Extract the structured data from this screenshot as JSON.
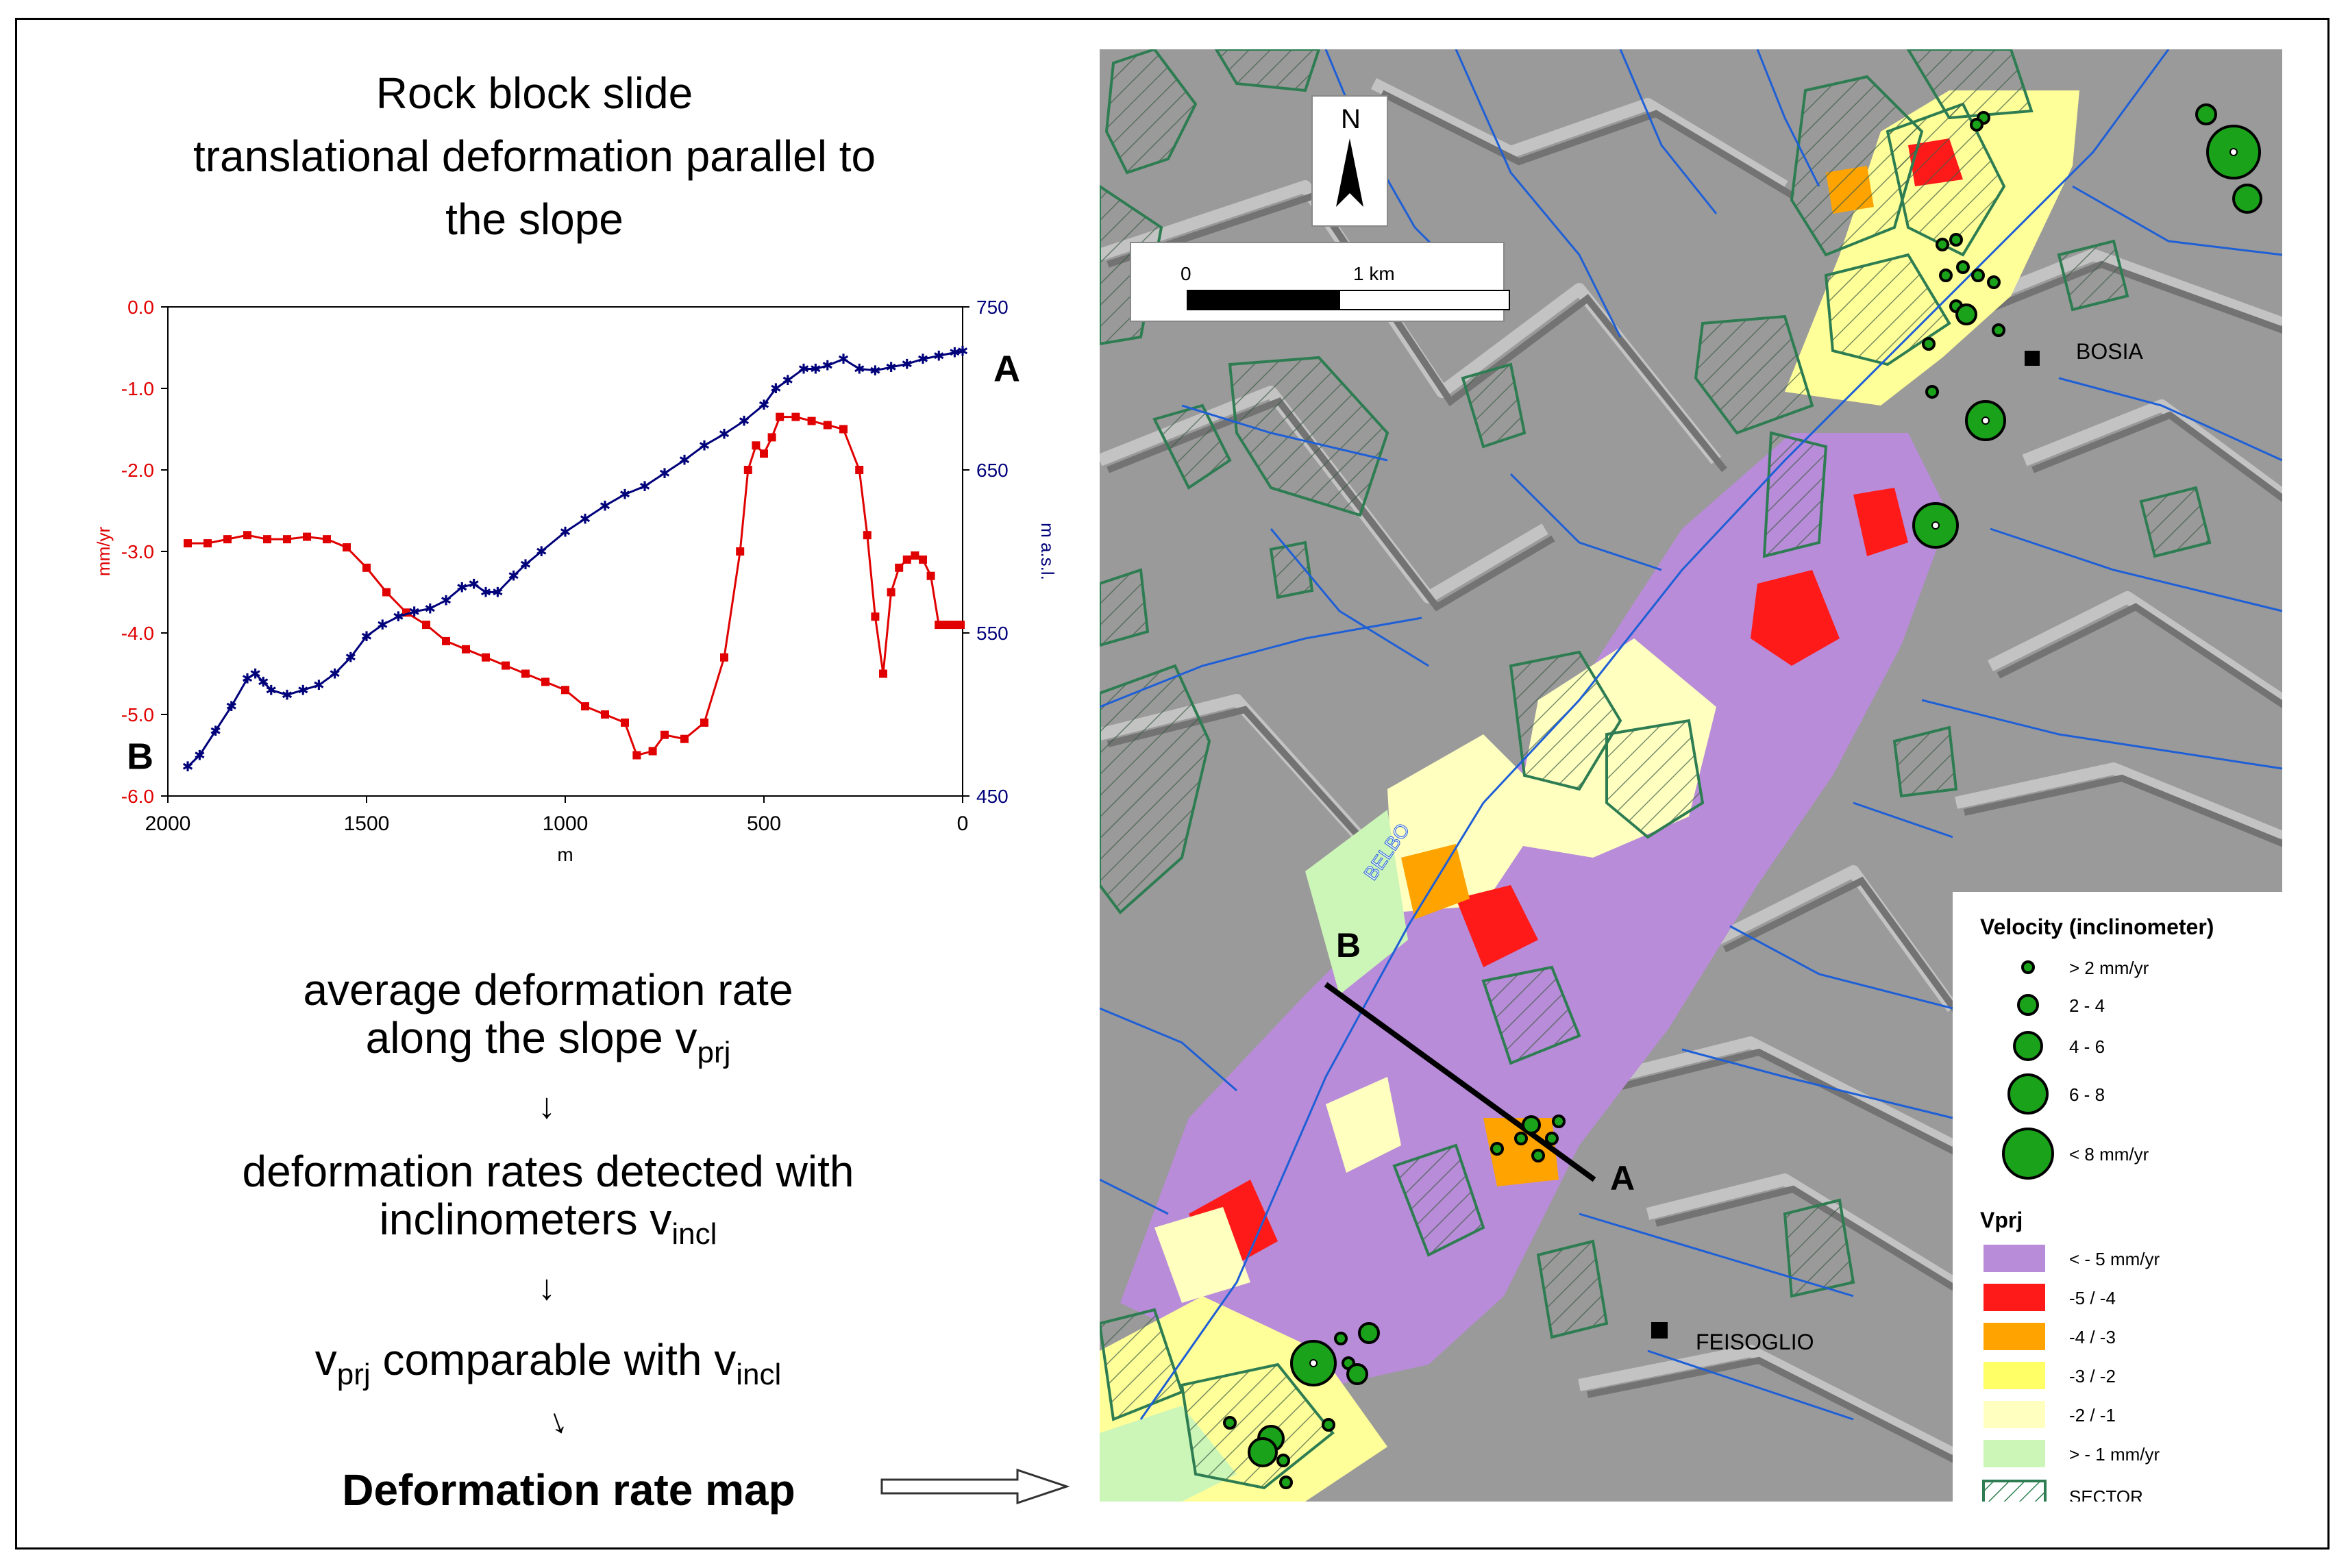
{
  "title_lines": [
    "Rock block slide",
    "translational deformation parallel to",
    "the slope"
  ],
  "chart_data": {
    "type": "line",
    "xlabel": "m",
    "ylabel_left": "mm/yr",
    "ylabel_right": "m a.s.l.",
    "x_ticks": [
      "2000",
      "1500",
      "1000",
      "500",
      "0"
    ],
    "y_left_ticks": [
      "0.0",
      "-1.0",
      "-2.0",
      "-3.0",
      "-4.0",
      "-5.0",
      "-6.0"
    ],
    "y_right_ticks": [
      "750",
      "650",
      "550",
      "450"
    ],
    "xlim": [
      2000,
      0
    ],
    "ylim_left": [
      -6.0,
      0.0
    ],
    "ylim_right": [
      450,
      750
    ],
    "end_label_left": "B",
    "end_label_right": "A",
    "colors": {
      "deformation": "#e00000",
      "elevation": "#00007a"
    },
    "series": [
      {
        "axis": "left",
        "x": [
          1950,
          1900,
          1850,
          1800,
          1750,
          1700,
          1650,
          1600,
          1550,
          1500,
          1450,
          1400,
          1350,
          1300,
          1250,
          1200,
          1150,
          1100,
          1050,
          1000,
          950,
          900,
          850,
          820,
          780,
          750,
          700,
          650,
          600,
          560,
          540,
          520,
          500,
          480,
          460,
          420,
          380,
          340,
          300,
          260,
          240,
          220,
          200,
          180,
          160,
          140,
          120,
          100,
          80,
          60,
          40,
          20,
          5
        ],
        "values": [
          -2.9,
          -2.9,
          -2.85,
          -2.8,
          -2.85,
          -2.85,
          -2.82,
          -2.85,
          -2.95,
          -3.2,
          -3.5,
          -3.75,
          -3.9,
          -4.1,
          -4.2,
          -4.3,
          -4.4,
          -4.5,
          -4.6,
          -4.7,
          -4.9,
          -5.0,
          -5.1,
          -5.5,
          -5.45,
          -5.25,
          -5.3,
          -5.1,
          -4.3,
          -3.0,
          -2.0,
          -1.7,
          -1.8,
          -1.6,
          -1.35,
          -1.35,
          -1.4,
          -1.45,
          -1.5,
          -2.0,
          -2.8,
          -3.8,
          -4.5,
          -3.5,
          -3.2,
          -3.1,
          -3.05,
          -3.1,
          -3.3,
          -3.9,
          -3.9,
          -3.9,
          -3.9
        ]
      },
      {
        "axis": "right",
        "x": [
          1950,
          1920,
          1880,
          1840,
          1800,
          1780,
          1760,
          1740,
          1700,
          1660,
          1620,
          1580,
          1540,
          1500,
          1460,
          1420,
          1380,
          1340,
          1300,
          1260,
          1230,
          1200,
          1170,
          1130,
          1100,
          1060,
          1000,
          950,
          900,
          850,
          800,
          750,
          700,
          650,
          600,
          550,
          500,
          470,
          440,
          400,
          370,
          340,
          300,
          260,
          220,
          180,
          140,
          100,
          60,
          20,
          0
        ],
        "values": [
          468,
          475,
          490,
          505,
          522,
          525,
          520,
          515,
          512,
          515,
          518,
          525,
          535,
          548,
          555,
          560,
          563,
          565,
          570,
          578,
          580,
          575,
          575,
          585,
          592,
          600,
          612,
          620,
          628,
          635,
          640,
          648,
          656,
          665,
          672,
          680,
          690,
          700,
          705,
          712,
          712,
          714,
          718,
          712,
          711,
          713,
          715,
          718,
          720,
          722,
          723
        ]
      }
    ]
  },
  "flow_steps": [
    {
      "line1": "average deformation rate",
      "line2_main": "along the slope v",
      "line2_sub": "prj"
    },
    {
      "line1": "deformation rates detected with",
      "line2_main": "inclinometers v",
      "line2_sub": "incl"
    },
    {
      "main1": "v",
      "sub1": "prj",
      "main2": " comparable with v",
      "sub2": "incl"
    }
  ],
  "final_label": "Deformation rate map",
  "map": {
    "north_label": "N",
    "scale_labels": [
      "0",
      "1 km"
    ],
    "places": [
      "BOSIA",
      "FEISOGLIO"
    ],
    "river_label": "BELBO",
    "profile_labels": [
      "B",
      "A"
    ],
    "colors": {
      "river": "#1f5fd6",
      "sector": "#2e7d52",
      "terrain": "#a0a0a0"
    },
    "legend": {
      "velocity_title": "Velocity (inclinometer)",
      "velocity_items": [
        "> 2  mm/yr",
        "2  - 4",
        "4 - 6",
        "6 - 8",
        "< 8  mm/yr"
      ],
      "vprj_title": "Vprj",
      "vprj_items": [
        {
          "label": "< - 5  mm/yr",
          "color": "#b88cd8"
        },
        {
          "label": "-5  / -4",
          "color": "#ff1a1a"
        },
        {
          "label": "-4 / -3",
          "color": "#ffa300"
        },
        {
          "label": "-3 / -2",
          "color": "#ffff66"
        },
        {
          "label": "-2 / -1",
          "color": "#ffffc0"
        },
        {
          "label": "> - 1 mm/yr",
          "color": "#ccf5b8"
        }
      ],
      "sector_label": "SECTOR"
    }
  }
}
